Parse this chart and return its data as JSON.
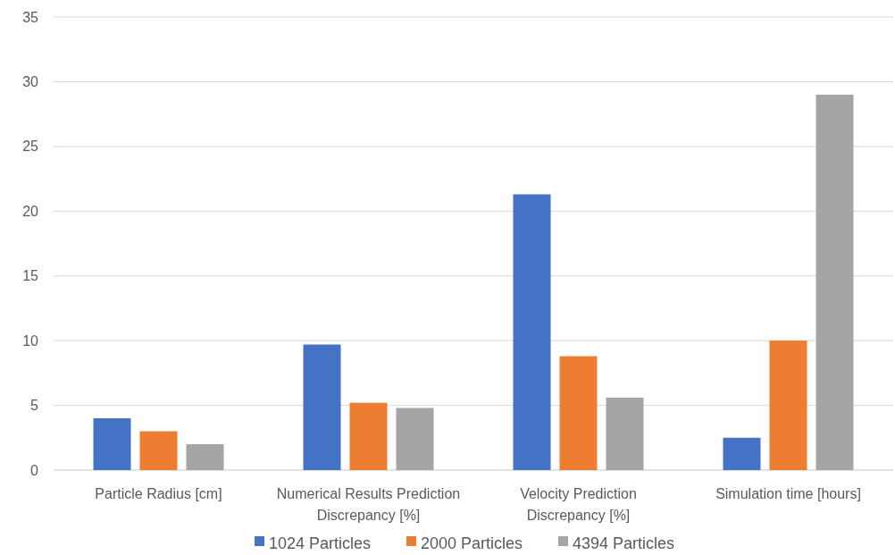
{
  "chart_data": {
    "type": "bar",
    "categories": [
      "Particle Radius [cm]",
      "Numerical Results Prediction Discrepancy [%]",
      "Velocity Prediction Discrepancy [%]",
      "Simulation time [hours]"
    ],
    "series": [
      {
        "name": "1024 Particles",
        "color": "#4472c4",
        "values": [
          4,
          9.7,
          21.3,
          2.5
        ]
      },
      {
        "name": "2000 Particles",
        "color": "#ed7d31",
        "values": [
          3,
          5.2,
          8.8,
          10
        ]
      },
      {
        "name": "4394 Particles",
        "color": "#a5a5a5",
        "values": [
          2,
          4.8,
          5.6,
          29
        ]
      }
    ],
    "ylim": [
      0,
      35
    ],
    "yticks": [
      0,
      5,
      10,
      15,
      20,
      25,
      30,
      35
    ],
    "grid": "y",
    "legend": "bottom"
  }
}
